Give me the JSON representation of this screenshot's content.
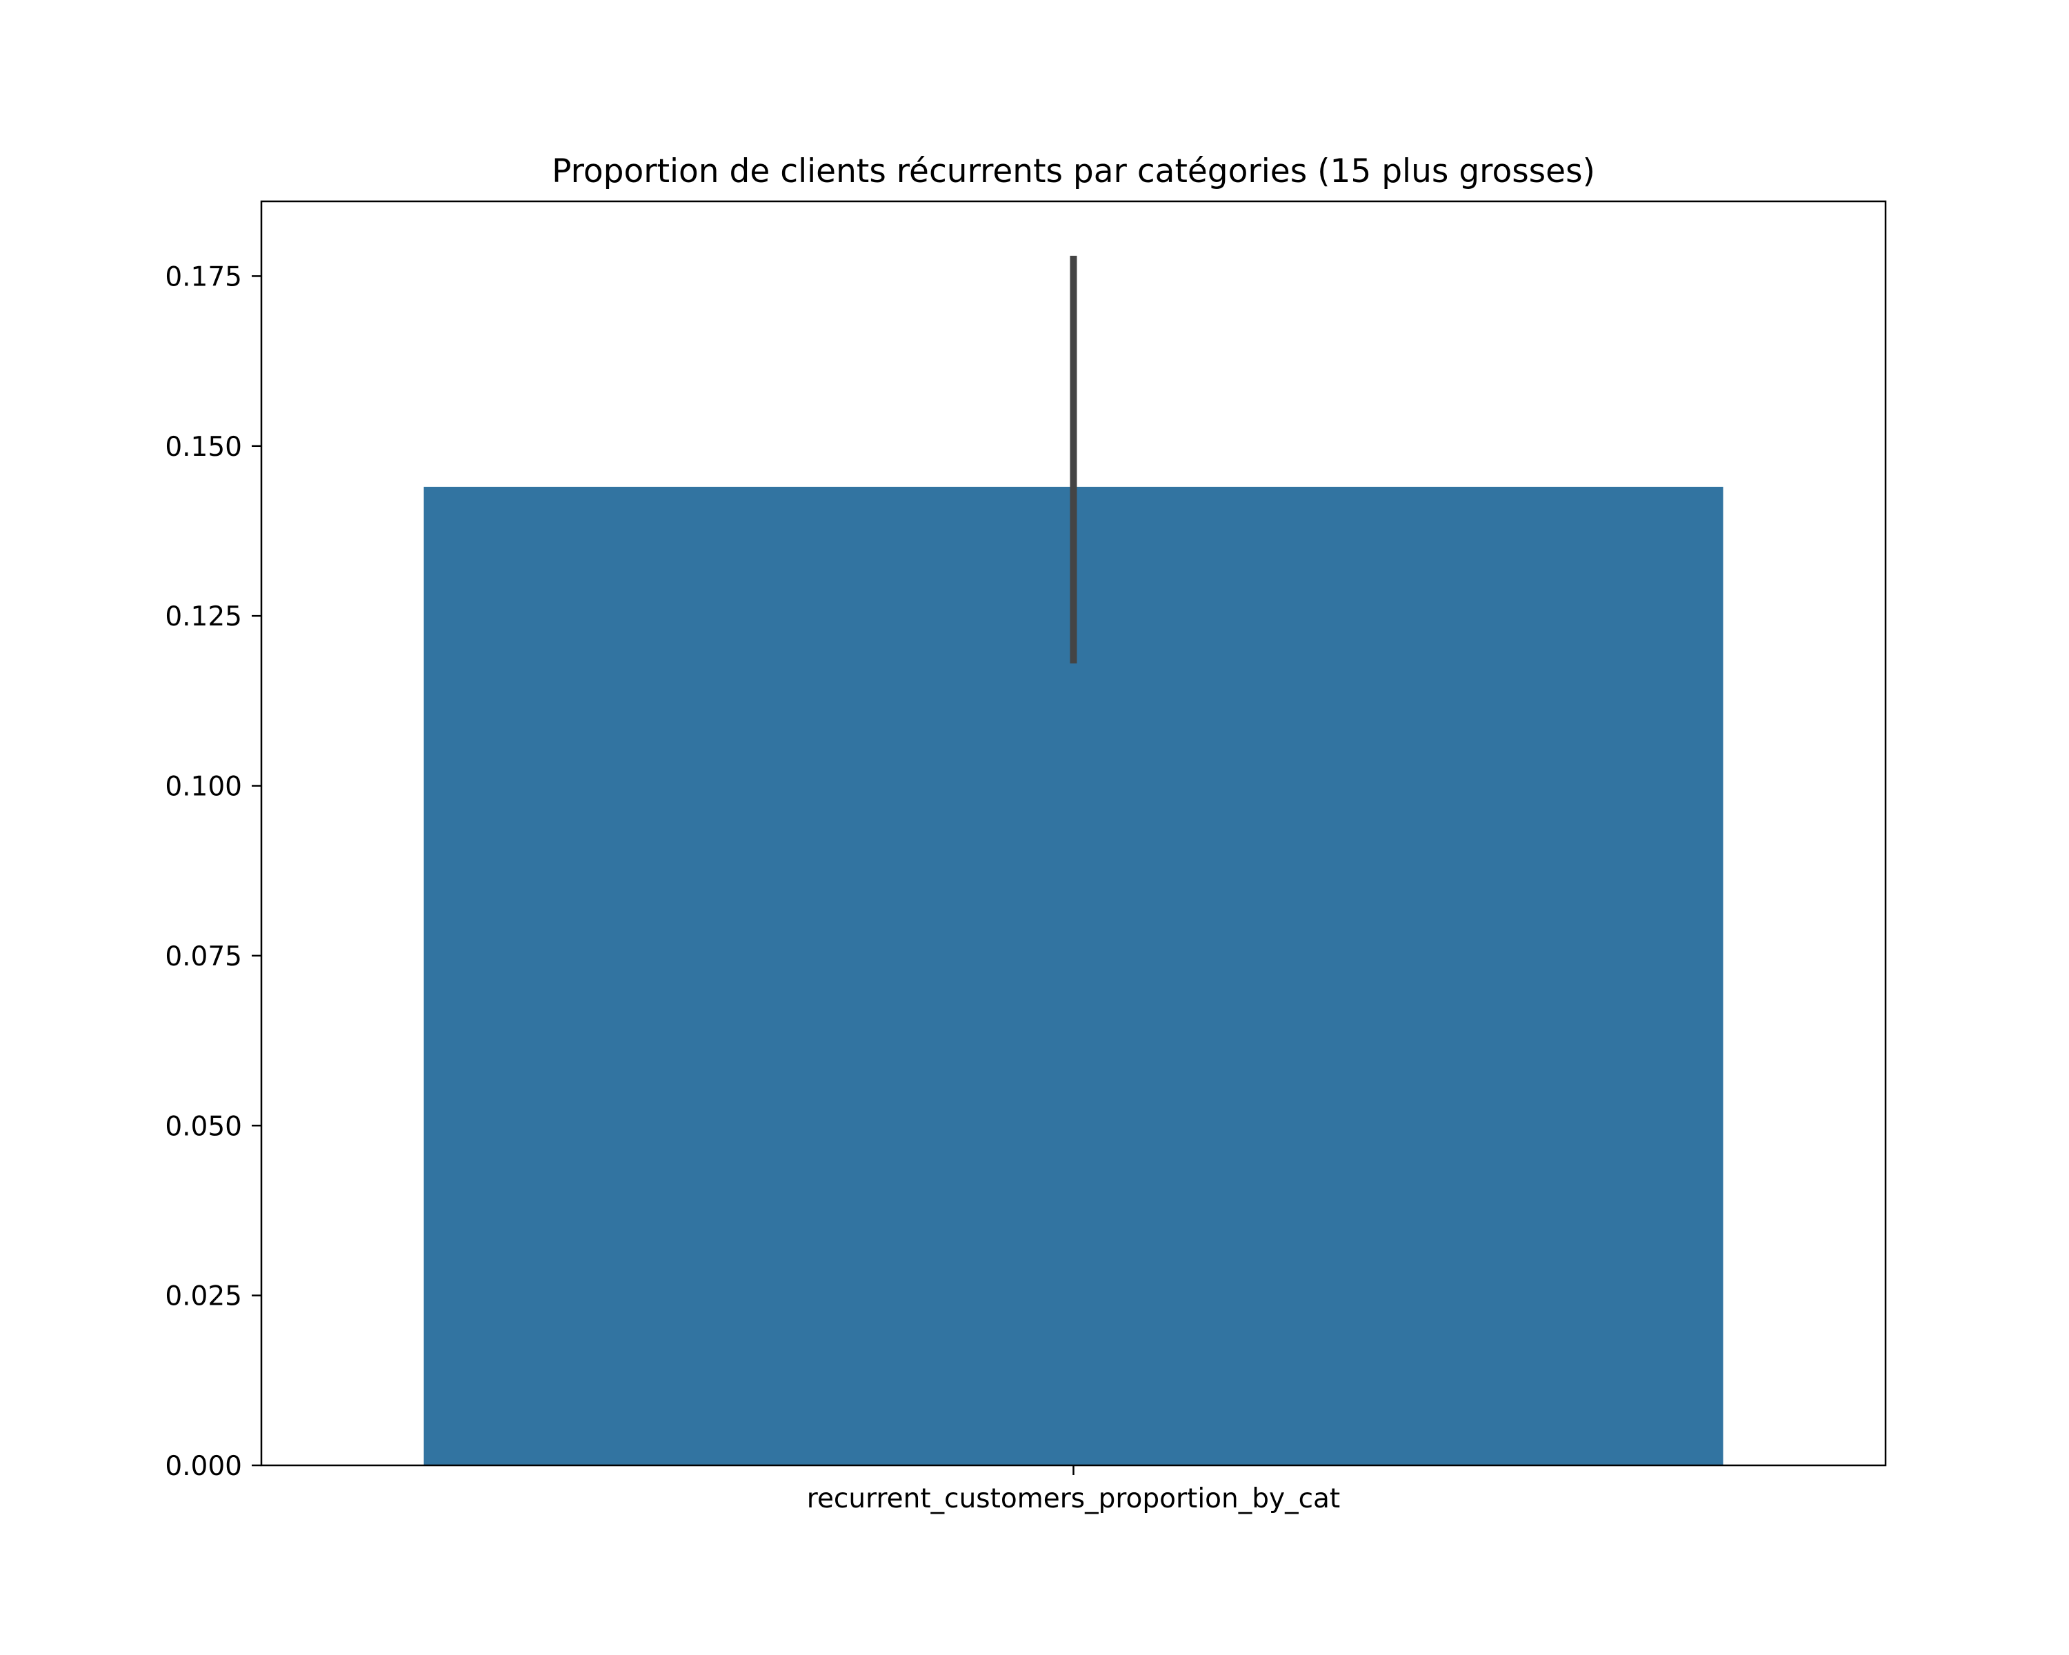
{
  "chart_data": {
    "type": "bar",
    "title": "Proportion de clients récurrents par catégories (15 plus grosses)",
    "xlabel": "",
    "ylabel": "",
    "categories": [
      "recurrent_customers_proportion_by_cat"
    ],
    "values": [
      0.144
    ],
    "error_bars": [
      {
        "low": 0.118,
        "high": 0.178
      }
    ],
    "ylim": [
      0,
      0.186
    ],
    "yticks": [
      0.0,
      0.025,
      0.05,
      0.075,
      0.1,
      0.125,
      0.15,
      0.175
    ],
    "ytick_labels": [
      "0.000",
      "0.025",
      "0.050",
      "0.075",
      "0.100",
      "0.125",
      "0.150",
      "0.175"
    ],
    "bar_color": "#3274a1",
    "error_color": "#444444",
    "grid": false,
    "legend": "none"
  }
}
